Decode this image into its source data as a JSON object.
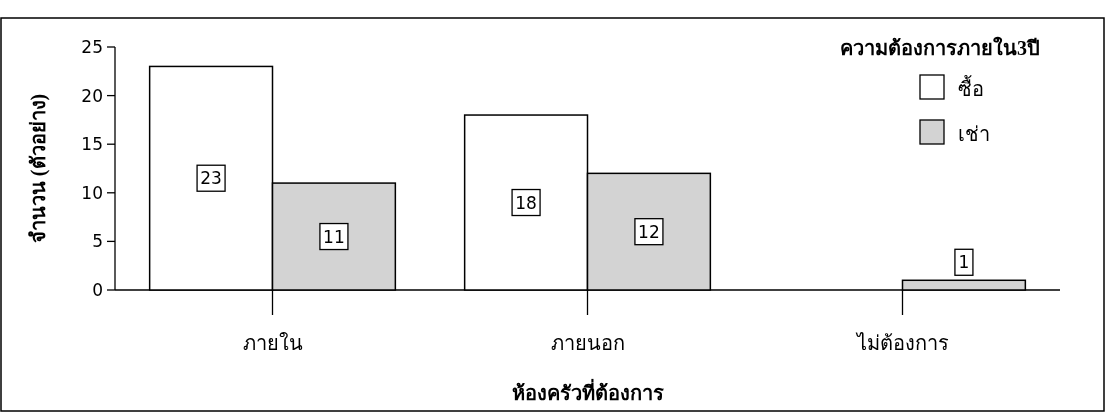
{
  "chart_data": {
    "type": "bar",
    "xlabel": "ห้องครัวที่ต้องการ",
    "ylabel": "จำนวน (ตัวอย่าง)",
    "legend_title": "ความต้องการภายใน3ปี",
    "categories": [
      "ภายใน",
      "ภายนอก",
      "ไม่ต้องการ"
    ],
    "series": [
      {
        "name": "ซื้อ",
        "color": "#ffffff",
        "values": [
          23,
          18,
          null
        ]
      },
      {
        "name": "เช่า",
        "color": "#d3d3d3",
        "values": [
          11,
          12,
          1
        ]
      }
    ],
    "ylim": [
      0,
      25
    ],
    "yticks": [
      0,
      5,
      10,
      15,
      20,
      25
    ],
    "data_labels": true,
    "legend": "top right",
    "grid": false
  }
}
